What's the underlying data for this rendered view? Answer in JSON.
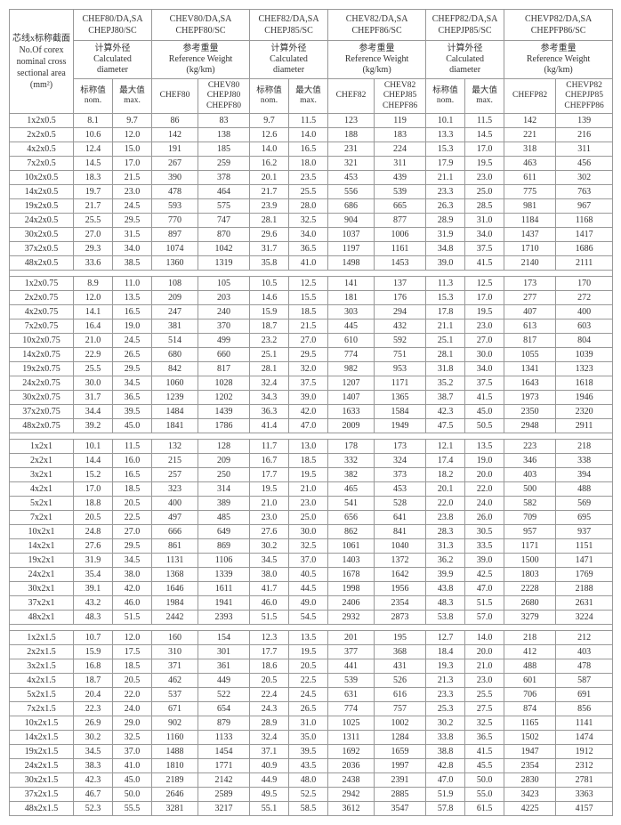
{
  "left_header": "芯线x标称截面\nNo.Of corex\nnominal cross\nsectional area\n(mm²)",
  "groups": [
    {
      "title": "CHEF80/DA,SA\nCHEPJ80/SC",
      "sub": "计算外径\nCalculated\ndiameter",
      "col1": "标称值\nnom.",
      "col2": "最大值\nmax."
    },
    {
      "title": "CHEV80/DA,SA\nCHEPF80/SC",
      "sub": "参考重量\nReference Weight\n(kg/km)",
      "col1": "CHEF80",
      "col2": "CHEV80\nCHEPJ80\nCHEPF80"
    },
    {
      "title": "CHEF82/DA,SA\nCHEPJ85/SC",
      "sub": "计算外径\nCalculated\ndiameter",
      "col1": "标称值\nnom.",
      "col2": "最大值\nmax."
    },
    {
      "title": "CHEV82/DA,SA\nCHEPF86/SC",
      "sub": "参考重量\nReference Weight\n(kg/km)",
      "col1": "CHEF82",
      "col2": "CHEV82\nCHEPJ85\nCHEPF86"
    },
    {
      "title": "CHEFP82/DA,SA\nCHEPJP85/SC",
      "sub": "计算外径\nCalculated\ndiameter",
      "col1": "标称值\nnom.",
      "col2": "最大值\nmax."
    },
    {
      "title": "CHEVP82/DA,SA\nCHEPFP86/SC",
      "sub": "参考重量\nReference Weight\n(kg/km)",
      "col1": "CHEFP82",
      "col2": "CHEVP82\nCHEPJP85\nCHEPFP86"
    }
  ],
  "blocks": [
    {
      "rows": [
        [
          "1x2x0.5",
          "8.1",
          "9.7",
          "86",
          "83",
          "9.7",
          "11.5",
          "123",
          "119",
          "10.1",
          "11.5",
          "142",
          "139"
        ],
        [
          "2x2x0.5",
          "10.6",
          "12.0",
          "142",
          "138",
          "12.6",
          "14.0",
          "188",
          "183",
          "13.3",
          "14.5",
          "221",
          "216"
        ],
        [
          "4x2x0.5",
          "12.4",
          "15.0",
          "191",
          "185",
          "14.0",
          "16.5",
          "231",
          "224",
          "15.3",
          "17.0",
          "318",
          "311"
        ],
        [
          "7x2x0.5",
          "14.5",
          "17.0",
          "267",
          "259",
          "16.2",
          "18.0",
          "321",
          "311",
          "17.9",
          "19.5",
          "463",
          "456"
        ],
        [
          "10x2x0.5",
          "18.3",
          "21.5",
          "390",
          "378",
          "20.1",
          "23.5",
          "453",
          "439",
          "21.1",
          "23.0",
          "611",
          "302"
        ],
        [
          "14x2x0.5",
          "19.7",
          "23.0",
          "478",
          "464",
          "21.7",
          "25.5",
          "556",
          "539",
          "23.3",
          "25.0",
          "775",
          "763"
        ],
        [
          "19x2x0.5",
          "21.7",
          "24.5",
          "593",
          "575",
          "23.9",
          "28.0",
          "686",
          "665",
          "26.3",
          "28.5",
          "981",
          "967"
        ],
        [
          "24x2x0.5",
          "25.5",
          "29.5",
          "770",
          "747",
          "28.1",
          "32.5",
          "904",
          "877",
          "28.9",
          "31.0",
          "1184",
          "1168"
        ],
        [
          "30x2x0.5",
          "27.0",
          "31.5",
          "897",
          "870",
          "29.6",
          "34.0",
          "1037",
          "1006",
          "31.9",
          "34.0",
          "1437",
          "1417"
        ],
        [
          "37x2x0.5",
          "29.3",
          "34.0",
          "1074",
          "1042",
          "31.7",
          "36.5",
          "1197",
          "1161",
          "34.8",
          "37.5",
          "1710",
          "1686"
        ],
        [
          "48x2x0.5",
          "33.6",
          "38.5",
          "1360",
          "1319",
          "35.8",
          "41.0",
          "1498",
          "1453",
          "39.0",
          "41.5",
          "2140",
          "2111"
        ]
      ]
    },
    {
      "rows": [
        [
          "1x2x0.75",
          "8.9",
          "11.0",
          "108",
          "105",
          "10.5",
          "12.5",
          "141",
          "137",
          "11.3",
          "12.5",
          "173",
          "170"
        ],
        [
          "2x2x0.75",
          "12.0",
          "13.5",
          "209",
          "203",
          "14.6",
          "15.5",
          "181",
          "176",
          "15.3",
          "17.0",
          "277",
          "272"
        ],
        [
          "4x2x0.75",
          "14.1",
          "16.5",
          "247",
          "240",
          "15.9",
          "18.5",
          "303",
          "294",
          "17.8",
          "19.5",
          "407",
          "400"
        ],
        [
          "7x2x0.75",
          "16.4",
          "19.0",
          "381",
          "370",
          "18.7",
          "21.5",
          "445",
          "432",
          "21.1",
          "23.0",
          "613",
          "603"
        ],
        [
          "10x2x0.75",
          "21.0",
          "24.5",
          "514",
          "499",
          "23.2",
          "27.0",
          "610",
          "592",
          "25.1",
          "27.0",
          "817",
          "804"
        ],
        [
          "14x2x0.75",
          "22.9",
          "26.5",
          "680",
          "660",
          "25.1",
          "29.5",
          "774",
          "751",
          "28.1",
          "30.0",
          "1055",
          "1039"
        ],
        [
          "19x2x0.75",
          "25.5",
          "29.5",
          "842",
          "817",
          "28.1",
          "32.0",
          "982",
          "953",
          "31.8",
          "34.0",
          "1341",
          "1323"
        ],
        [
          "24x2x0.75",
          "30.0",
          "34.5",
          "1060",
          "1028",
          "32.4",
          "37.5",
          "1207",
          "1171",
          "35.2",
          "37.5",
          "1643",
          "1618"
        ],
        [
          "30x2x0.75",
          "31.7",
          "36.5",
          "1239",
          "1202",
          "34.3",
          "39.0",
          "1407",
          "1365",
          "38.7",
          "41.5",
          "1973",
          "1946"
        ],
        [
          "37x2x0.75",
          "34.4",
          "39.5",
          "1484",
          "1439",
          "36.3",
          "42.0",
          "1633",
          "1584",
          "42.3",
          "45.0",
          "2350",
          "2320"
        ],
        [
          "48x2x0.75",
          "39.2",
          "45.0",
          "1841",
          "1786",
          "41.4",
          "47.0",
          "2009",
          "1949",
          "47.5",
          "50.5",
          "2948",
          "2911"
        ]
      ]
    },
    {
      "rows": [
        [
          "1x2x1",
          "10.1",
          "11.5",
          "132",
          "128",
          "11.7",
          "13.0",
          "178",
          "173",
          "12.1",
          "13.5",
          "223",
          "218"
        ],
        [
          "2x2x1",
          "14.4",
          "16.0",
          "215",
          "209",
          "16.7",
          "18.5",
          "332",
          "324",
          "17.4",
          "19.0",
          "346",
          "338"
        ],
        [
          "3x2x1",
          "15.2",
          "16.5",
          "257",
          "250",
          "17.7",
          "19.5",
          "382",
          "373",
          "18.2",
          "20.0",
          "403",
          "394"
        ],
        [
          "4x2x1",
          "17.0",
          "18.5",
          "323",
          "314",
          "19.5",
          "21.0",
          "465",
          "453",
          "20.1",
          "22.0",
          "500",
          "488"
        ],
        [
          "5x2x1",
          "18.8",
          "20.5",
          "400",
          "389",
          "21.0",
          "23.0",
          "541",
          "528",
          "22.0",
          "24.0",
          "582",
          "569"
        ],
        [
          "7x2x1",
          "20.5",
          "22.5",
          "497",
          "485",
          "23.0",
          "25.0",
          "656",
          "641",
          "23.8",
          "26.0",
          "709",
          "695"
        ],
        [
          "10x2x1",
          "24.8",
          "27.0",
          "666",
          "649",
          "27.6",
          "30.0",
          "862",
          "841",
          "28.3",
          "30.5",
          "957",
          "937"
        ],
        [
          "14x2x1",
          "27.6",
          "29.5",
          "861",
          "869",
          "30.2",
          "32.5",
          "1061",
          "1040",
          "31.3",
          "33.5",
          "1171",
          "1151"
        ],
        [
          "19x2x1",
          "31.9",
          "34.5",
          "1131",
          "1106",
          "34.5",
          "37.0",
          "1403",
          "1372",
          "36.2",
          "39.0",
          "1500",
          "1471"
        ],
        [
          "24x2x1",
          "35.4",
          "38.0",
          "1368",
          "1339",
          "38.0",
          "40.5",
          "1678",
          "1642",
          "39.9",
          "42.5",
          "1803",
          "1769"
        ],
        [
          "30x2x1",
          "39.1",
          "42.0",
          "1646",
          "1611",
          "41.7",
          "44.5",
          "1998",
          "1956",
          "43.8",
          "47.0",
          "2228",
          "2188"
        ],
        [
          "37x2x1",
          "43.2",
          "46.0",
          "1984",
          "1941",
          "46.0",
          "49.0",
          "2406",
          "2354",
          "48.3",
          "51.5",
          "2680",
          "2631"
        ],
        [
          "48x2x1",
          "48.3",
          "51.5",
          "2442",
          "2393",
          "51.5",
          "54.5",
          "2932",
          "2873",
          "53.8",
          "57.0",
          "3279",
          "3224"
        ]
      ]
    },
    {
      "rows": [
        [
          "1x2x1.5",
          "10.7",
          "12.0",
          "160",
          "154",
          "12.3",
          "13.5",
          "201",
          "195",
          "12.7",
          "14.0",
          "218",
          "212"
        ],
        [
          "2x2x1.5",
          "15.9",
          "17.5",
          "310",
          "301",
          "17.7",
          "19.5",
          "377",
          "368",
          "18.4",
          "20.0",
          "412",
          "403"
        ],
        [
          "3x2x1.5",
          "16.8",
          "18.5",
          "371",
          "361",
          "18.6",
          "20.5",
          "441",
          "431",
          "19.3",
          "21.0",
          "488",
          "478"
        ],
        [
          "4x2x1.5",
          "18.7",
          "20.5",
          "462",
          "449",
          "20.5",
          "22.5",
          "539",
          "526",
          "21.3",
          "23.0",
          "601",
          "587"
        ],
        [
          "5x2x1.5",
          "20.4",
          "22.0",
          "537",
          "522",
          "22.4",
          "24.5",
          "631",
          "616",
          "23.3",
          "25.5",
          "706",
          "691"
        ],
        [
          "7x2x1.5",
          "22.3",
          "24.0",
          "671",
          "654",
          "24.3",
          "26.5",
          "774",
          "757",
          "25.3",
          "27.5",
          "874",
          "856"
        ],
        [
          "10x2x1.5",
          "26.9",
          "29.0",
          "902",
          "879",
          "28.9",
          "31.0",
          "1025",
          "1002",
          "30.2",
          "32.5",
          "1165",
          "1141"
        ],
        [
          "14x2x1.5",
          "30.2",
          "32.5",
          "1160",
          "1133",
          "32.4",
          "35.0",
          "1311",
          "1284",
          "33.8",
          "36.5",
          "1502",
          "1474"
        ],
        [
          "19x2x1.5",
          "34.5",
          "37.0",
          "1488",
          "1454",
          "37.1",
          "39.5",
          "1692",
          "1659",
          "38.8",
          "41.5",
          "1947",
          "1912"
        ],
        [
          "24x2x1.5",
          "38.3",
          "41.0",
          "1810",
          "1771",
          "40.9",
          "43.5",
          "2036",
          "1997",
          "42.8",
          "45.5",
          "2354",
          "2312"
        ],
        [
          "30x2x1.5",
          "42.3",
          "45.0",
          "2189",
          "2142",
          "44.9",
          "48.0",
          "2438",
          "2391",
          "47.0",
          "50.0",
          "2830",
          "2781"
        ],
        [
          "37x2x1.5",
          "46.7",
          "50.0",
          "2646",
          "2589",
          "49.5",
          "52.5",
          "2942",
          "2885",
          "51.9",
          "55.0",
          "3423",
          "3363"
        ],
        [
          "48x2x1.5",
          "52.3",
          "55.5",
          "3281",
          "3217",
          "55.1",
          "58.5",
          "3612",
          "3547",
          "57.8",
          "61.5",
          "4225",
          "4157"
        ]
      ]
    }
  ]
}
